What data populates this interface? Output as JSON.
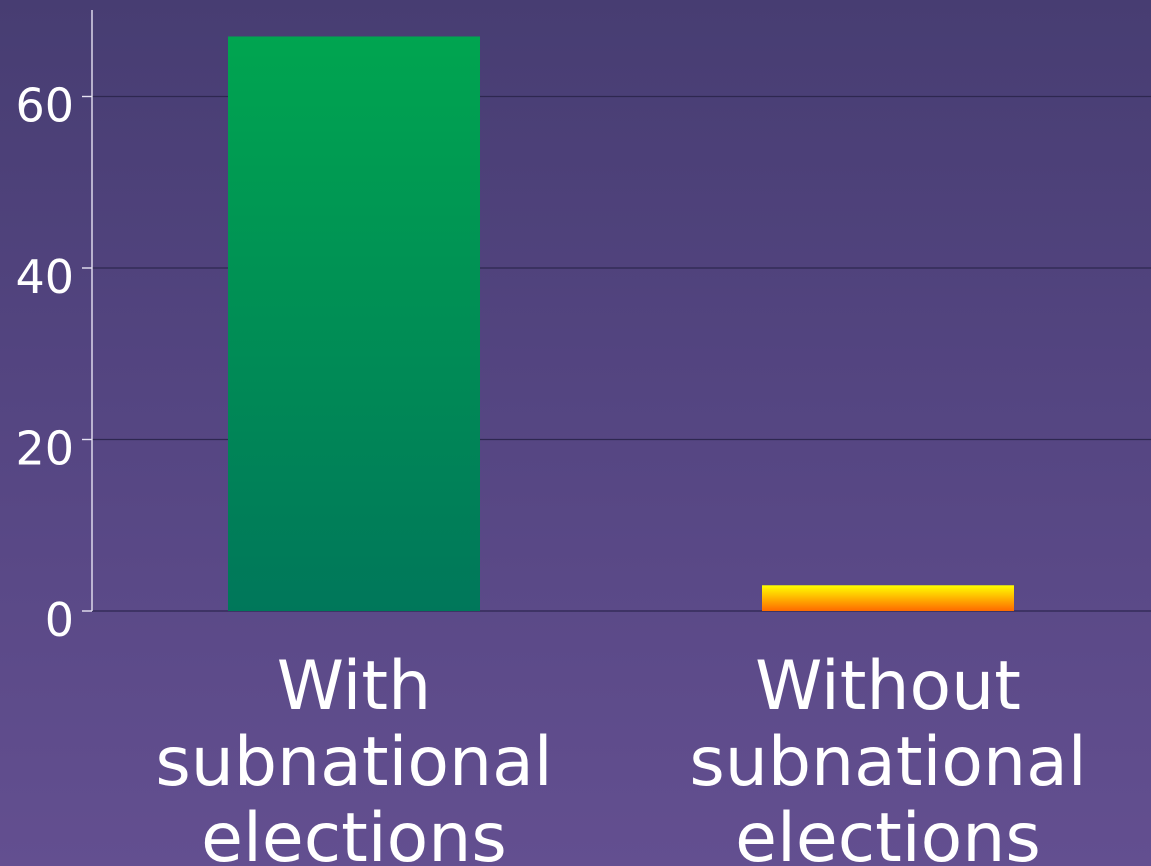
{
  "chart_data": {
    "type": "bar",
    "categories": [
      [
        "With",
        "subnational",
        "elections"
      ],
      [
        "Without",
        "subnational",
        "elections"
      ]
    ],
    "values": [
      67,
      3
    ],
    "yticks": [
      0,
      20,
      40,
      60
    ],
    "ylim": [
      0,
      70
    ],
    "grid": true,
    "title": "",
    "xlabel": "",
    "ylabel": "",
    "colors": {
      "bar_1_top": "#00a550",
      "bar_1_bottom": "#00775a",
      "bar_2_top": "#ffff00",
      "bar_2_bottom": "#ff6a00",
      "text": "#ffffff",
      "gridline": "#2e2750"
    }
  }
}
